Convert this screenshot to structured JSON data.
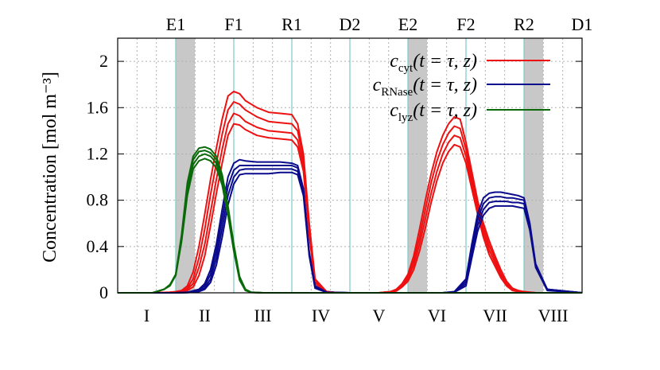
{
  "chart_data": {
    "type": "line",
    "ylabel": "Concentration [mol m⁻³]",
    "ylim": [
      0,
      2.2
    ],
    "xlim": [
      0,
      8
    ],
    "yticks": [
      "0",
      "0.4",
      "0.8",
      "1.2",
      "1.6",
      "2"
    ],
    "ytick_values": [
      0,
      0.4,
      0.8,
      1.2,
      1.6,
      2.0
    ],
    "zone_labels": [
      "I",
      "II",
      "III",
      "IV",
      "V",
      "VI",
      "VII",
      "VIII"
    ],
    "port_labels": [
      "E1",
      "F1",
      "R1",
      "D2",
      "E2",
      "F2",
      "R2",
      "D1"
    ],
    "port_positions": [
      1,
      2,
      3,
      4,
      5,
      6,
      7,
      8
    ],
    "grid": true,
    "legend_position": "top-right",
    "colors": {
      "cyt": "#ee1111",
      "rnase": "#0a0a8c",
      "lyz": "#0a6a0a",
      "port": "#7ec8c8",
      "shade": "#c8c8c8"
    },
    "series": [
      {
        "name": "c_cyt(t = τ, z)",
        "key": "cyt",
        "x": [
          0,
          0.6,
          0.9,
          1.0,
          1.1,
          1.2,
          1.3,
          1.4,
          1.5,
          1.6,
          1.7,
          1.8,
          1.9,
          2.0,
          2.1,
          2.2,
          2.4,
          2.6,
          2.8,
          3.0,
          3.1,
          3.2,
          3.3,
          3.4,
          3.6,
          3.8,
          4.0,
          4.3,
          4.5,
          4.7,
          4.8,
          4.9,
          5.0,
          5.1,
          5.2,
          5.3,
          5.4,
          5.5,
          5.6,
          5.7,
          5.8,
          5.9,
          6.0,
          6.1,
          6.2,
          6.3,
          6.4,
          6.5,
          6.6,
          6.7,
          6.8,
          6.9,
          7.0,
          7.1,
          7.2,
          7.4,
          8.0
        ],
        "curves": [
          [
            0,
            0,
            0.005,
            0.01,
            0.02,
            0.06,
            0.18,
            0.4,
            0.68,
            0.98,
            1.25,
            1.5,
            1.7,
            1.74,
            1.72,
            1.66,
            1.6,
            1.56,
            1.55,
            1.54,
            1.46,
            1.2,
            0.6,
            0.12,
            0.01,
            0,
            0,
            0,
            0,
            0.01,
            0.03,
            0.08,
            0.16,
            0.32,
            0.55,
            0.8,
            1.03,
            1.22,
            1.36,
            1.46,
            1.52,
            1.5,
            1.3,
            1.05,
            0.8,
            0.6,
            0.45,
            0.32,
            0.2,
            0.1,
            0.04,
            0.02,
            0.01,
            0.005,
            0,
            0,
            0
          ],
          [
            0,
            0,
            0.004,
            0.008,
            0.015,
            0.04,
            0.12,
            0.3,
            0.55,
            0.85,
            1.12,
            1.37,
            1.58,
            1.65,
            1.63,
            1.58,
            1.52,
            1.48,
            1.47,
            1.46,
            1.4,
            1.15,
            0.55,
            0.1,
            0.01,
            0,
            0,
            0,
            0,
            0.01,
            0.025,
            0.07,
            0.14,
            0.28,
            0.48,
            0.72,
            0.95,
            1.14,
            1.28,
            1.38,
            1.44,
            1.42,
            1.24,
            1.0,
            0.76,
            0.56,
            0.41,
            0.29,
            0.17,
            0.08,
            0.03,
            0.015,
            0.008,
            0.004,
            0,
            0,
            0
          ],
          [
            0,
            0,
            0.003,
            0.006,
            0.01,
            0.03,
            0.08,
            0.22,
            0.42,
            0.7,
            0.98,
            1.24,
            1.46,
            1.55,
            1.53,
            1.48,
            1.43,
            1.4,
            1.39,
            1.38,
            1.32,
            1.1,
            0.52,
            0.09,
            0.01,
            0,
            0,
            0,
            0,
            0.008,
            0.02,
            0.06,
            0.12,
            0.24,
            0.42,
            0.64,
            0.86,
            1.05,
            1.2,
            1.3,
            1.36,
            1.34,
            1.18,
            0.95,
            0.72,
            0.52,
            0.37,
            0.26,
            0.15,
            0.07,
            0.025,
            0.012,
            0.006,
            0.003,
            0,
            0,
            0
          ],
          [
            0,
            0,
            0.002,
            0.004,
            0.008,
            0.02,
            0.05,
            0.15,
            0.32,
            0.58,
            0.86,
            1.12,
            1.36,
            1.46,
            1.45,
            1.41,
            1.36,
            1.34,
            1.33,
            1.32,
            1.26,
            1.05,
            0.5,
            0.08,
            0.01,
            0,
            0,
            0,
            0,
            0.006,
            0.015,
            0.05,
            0.1,
            0.2,
            0.36,
            0.56,
            0.78,
            0.97,
            1.12,
            1.22,
            1.28,
            1.26,
            1.12,
            0.9,
            0.68,
            0.48,
            0.33,
            0.23,
            0.13,
            0.06,
            0.02,
            0.01,
            0.005,
            0.002,
            0,
            0,
            0
          ]
        ]
      },
      {
        "name": "c_RNase(t = τ, z)",
        "key": "rnase",
        "x": [
          0,
          1.0,
          1.2,
          1.4,
          1.5,
          1.6,
          1.7,
          1.8,
          1.9,
          2.0,
          2.1,
          2.2,
          2.4,
          2.6,
          2.8,
          3.0,
          3.1,
          3.2,
          3.3,
          3.4,
          3.6,
          4.0,
          5.0,
          5.6,
          5.8,
          6.0,
          6.1,
          6.2,
          6.3,
          6.4,
          6.5,
          6.6,
          6.7,
          6.8,
          6.9,
          7.0,
          7.1,
          7.2,
          7.4,
          8.0
        ],
        "curves": [
          [
            0,
            0,
            0.005,
            0.03,
            0.08,
            0.2,
            0.42,
            0.72,
            1.0,
            1.12,
            1.15,
            1.14,
            1.13,
            1.13,
            1.13,
            1.12,
            1.1,
            0.9,
            0.35,
            0.06,
            0.005,
            0,
            0,
            0,
            0.01,
            0.12,
            0.42,
            0.68,
            0.82,
            0.86,
            0.87,
            0.87,
            0.86,
            0.85,
            0.84,
            0.82,
            0.6,
            0.25,
            0.03,
            0
          ],
          [
            0,
            0,
            0.004,
            0.02,
            0.06,
            0.16,
            0.36,
            0.64,
            0.92,
            1.06,
            1.1,
            1.1,
            1.1,
            1.1,
            1.1,
            1.1,
            1.08,
            0.88,
            0.34,
            0.05,
            0.004,
            0,
            0,
            0,
            0.008,
            0.1,
            0.38,
            0.63,
            0.77,
            0.82,
            0.83,
            0.83,
            0.82,
            0.82,
            0.81,
            0.8,
            0.58,
            0.24,
            0.03,
            0
          ],
          [
            0,
            0,
            0.003,
            0.015,
            0.04,
            0.12,
            0.3,
            0.56,
            0.84,
            1.0,
            1.06,
            1.07,
            1.07,
            1.07,
            1.07,
            1.07,
            1.05,
            0.86,
            0.33,
            0.05,
            0.004,
            0,
            0,
            0,
            0.006,
            0.08,
            0.34,
            0.58,
            0.72,
            0.78,
            0.79,
            0.79,
            0.79,
            0.78,
            0.78,
            0.77,
            0.56,
            0.23,
            0.03,
            0
          ],
          [
            0,
            0,
            0.002,
            0.01,
            0.03,
            0.09,
            0.24,
            0.48,
            0.76,
            0.94,
            1.02,
            1.03,
            1.03,
            1.03,
            1.04,
            1.04,
            1.02,
            0.84,
            0.32,
            0.04,
            0.003,
            0,
            0,
            0,
            0.005,
            0.06,
            0.3,
            0.53,
            0.67,
            0.73,
            0.75,
            0.75,
            0.75,
            0.75,
            0.74,
            0.73,
            0.54,
            0.22,
            0.02,
            0
          ]
        ]
      },
      {
        "name": "c_lyz(t = τ, z)",
        "key": "lyz",
        "x": [
          0,
          0.6,
          0.8,
          0.9,
          1.0,
          1.1,
          1.2,
          1.3,
          1.4,
          1.5,
          1.6,
          1.7,
          1.8,
          1.9,
          2.0,
          2.1,
          2.2,
          2.3,
          2.5,
          3.0,
          8.0
        ],
        "curves": [
          [
            0,
            0,
            0.03,
            0.07,
            0.16,
            0.5,
            0.95,
            1.18,
            1.25,
            1.26,
            1.24,
            1.18,
            1.02,
            0.75,
            0.42,
            0.14,
            0.03,
            0.005,
            0,
            0,
            0
          ],
          [
            0,
            0,
            0.03,
            0.07,
            0.16,
            0.48,
            0.92,
            1.15,
            1.22,
            1.23,
            1.21,
            1.15,
            1.0,
            0.72,
            0.4,
            0.13,
            0.03,
            0.005,
            0,
            0,
            0
          ],
          [
            0,
            0,
            0.03,
            0.07,
            0.15,
            0.46,
            0.88,
            1.11,
            1.18,
            1.2,
            1.18,
            1.12,
            0.97,
            0.7,
            0.38,
            0.12,
            0.025,
            0.004,
            0,
            0,
            0
          ],
          [
            0,
            0,
            0.03,
            0.06,
            0.15,
            0.44,
            0.84,
            1.07,
            1.14,
            1.16,
            1.14,
            1.08,
            0.93,
            0.67,
            0.36,
            0.11,
            0.02,
            0.003,
            0,
            0,
            0
          ]
        ]
      }
    ]
  }
}
